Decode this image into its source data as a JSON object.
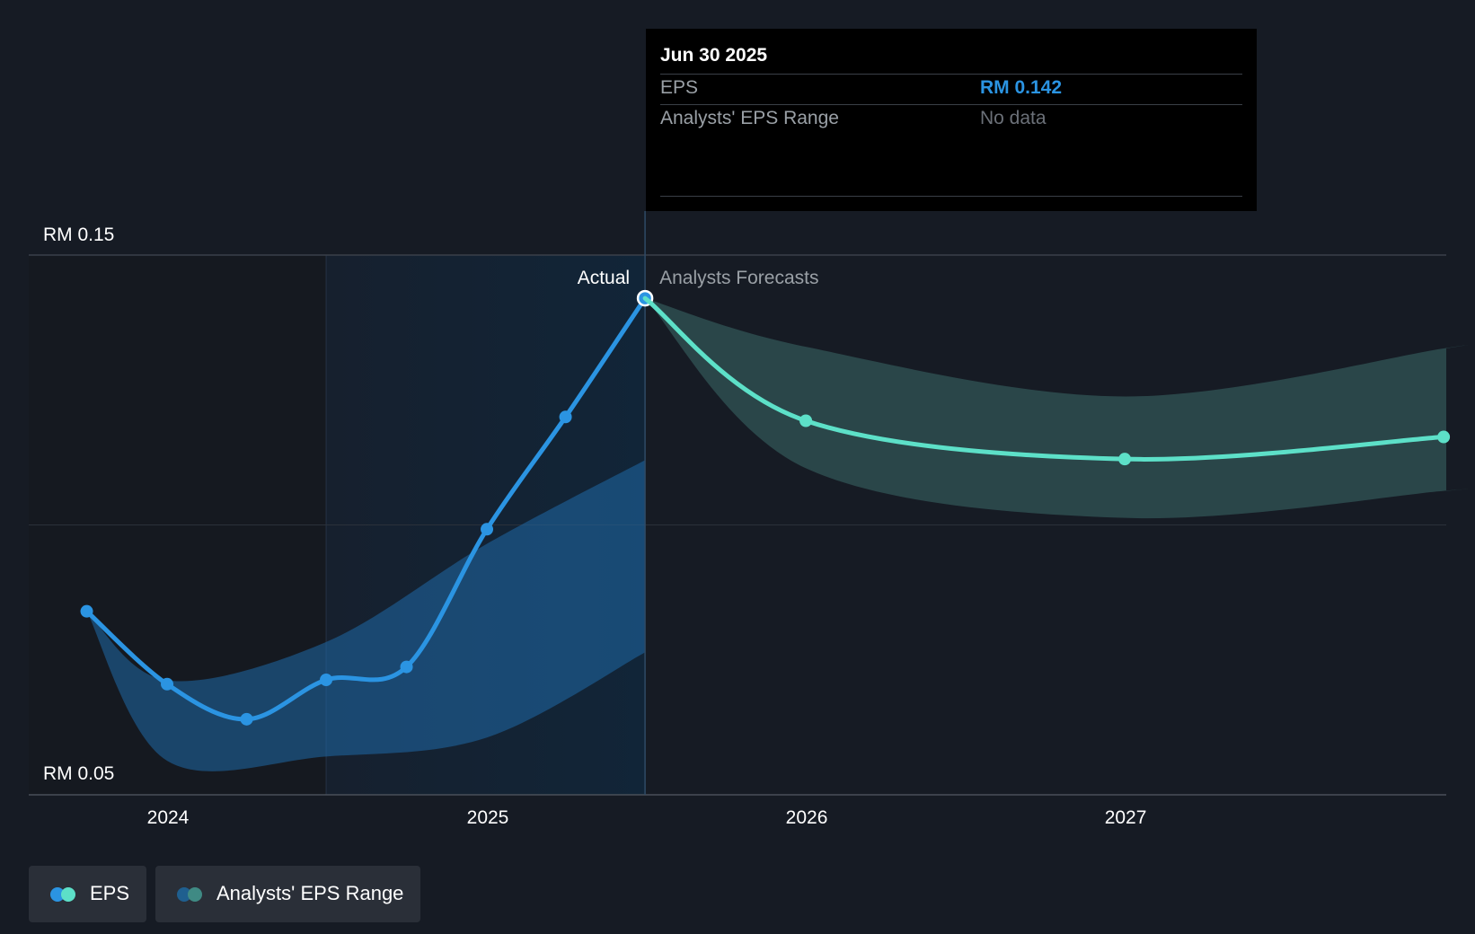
{
  "chart_data": {
    "type": "line",
    "x_ticks": [
      "2024",
      "2025",
      "2026",
      "2027"
    ],
    "y_labels": [
      "RM 0.15",
      "RM 0.05"
    ],
    "ylim": [
      0.05,
      0.15
    ],
    "divider_labels": {
      "actual": "Actual",
      "forecast": "Analysts Forecasts"
    },
    "series": [
      {
        "name": "EPS",
        "color": "#2b94e2",
        "kind": "actual",
        "points": [
          [
            "2023-09-30",
            0.084
          ],
          [
            "2023-12-31",
            0.0705
          ],
          [
            "2024-03-31",
            0.064
          ],
          [
            "2024-06-30",
            0.0713
          ],
          [
            "2024-09-30",
            0.0737
          ],
          [
            "2024-12-31",
            0.0992
          ],
          [
            "2025-03-31",
            0.12
          ],
          [
            "2025-06-30",
            0.142
          ]
        ]
      },
      {
        "name": "EPS",
        "color": "#5de0c8",
        "kind": "forecast",
        "points": [
          [
            "2025-06-30",
            0.142
          ],
          [
            "2025-12-31",
            0.1193
          ],
          [
            "2026-12-31",
            0.1122
          ],
          [
            "2027-12-31",
            0.1163
          ]
        ]
      }
    ],
    "actual_range": {
      "color": "#1f6aa8",
      "upper": [
        [
          "2023-09-30",
          0.084
        ],
        [
          "2023-12-31",
          0.0712
        ],
        [
          "2024-06-30",
          0.0783
        ],
        [
          "2024-12-31",
          0.0965
        ],
        [
          "2025-06-30",
          0.112
        ]
      ],
      "lower": [
        [
          "2023-09-30",
          0.084
        ],
        [
          "2023-12-31",
          0.0563
        ],
        [
          "2024-06-30",
          0.0571
        ],
        [
          "2024-12-31",
          0.0606
        ],
        [
          "2025-06-30",
          0.0764
        ]
      ]
    },
    "forecast_range": {
      "color": "#2a4a4c",
      "upper": [
        [
          "2025-06-30",
          0.142
        ],
        [
          "2025-12-31",
          0.133
        ],
        [
          "2026-12-31",
          0.1238
        ],
        [
          "2027-12-31",
          0.1327
        ]
      ],
      "lower": [
        [
          "2025-06-30",
          0.142
        ],
        [
          "2025-12-31",
          0.1105
        ],
        [
          "2026-12-31",
          0.1013
        ],
        [
          "2027-12-31",
          0.1063
        ]
      ]
    },
    "highlight": {
      "date": "2025-06-30",
      "value": 0.142
    }
  },
  "tooltip": {
    "date": "Jun 30 2025",
    "rows": [
      {
        "label": "EPS",
        "value": "RM 0.142"
      },
      {
        "label": "Analysts' EPS Range",
        "value": "No data"
      }
    ]
  },
  "legend": [
    {
      "label": "EPS",
      "colors": [
        "#2b94e2",
        "#5de0c8"
      ]
    },
    {
      "label": "Analysts' EPS Range",
      "colors": [
        "#1f5f8f",
        "#3f8a84"
      ]
    }
  ]
}
